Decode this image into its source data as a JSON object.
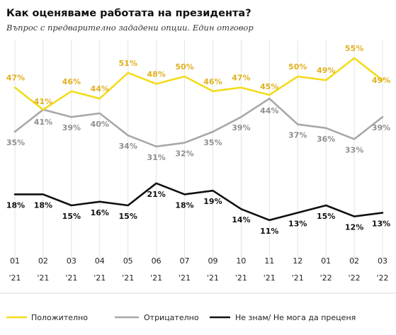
{
  "chart_data": {
    "type": "line",
    "title": "Как оценяваме работата на президента?",
    "subtitle": "Въпрос с предварително зададени опции. Един отговор",
    "xlabel": "",
    "ylabel": "",
    "ylim": [
      0,
      60
    ],
    "grid": true,
    "legend_position": "bottom",
    "x": [
      {
        "month": "01",
        "year": "'21"
      },
      {
        "month": "02",
        "year": "'21"
      },
      {
        "month": "03",
        "year": "'21"
      },
      {
        "month": "04",
        "year": "'21"
      },
      {
        "month": "05",
        "year": "'21"
      },
      {
        "month": "06",
        "year": "'21"
      },
      {
        "month": "07",
        "year": "'21"
      },
      {
        "month": "09",
        "year": "'21"
      },
      {
        "month": "10",
        "year": "'21"
      },
      {
        "month": "11",
        "year": "'21"
      },
      {
        "month": "12",
        "year": "'21"
      },
      {
        "month": "01",
        "year": "'22"
      },
      {
        "month": "02",
        "year": "'22"
      },
      {
        "month": "03",
        "year": "'22"
      }
    ],
    "series": [
      {
        "name": "Положително",
        "color": "#f2dc1b",
        "label_color": "#e0b020",
        "values": [
          47,
          41,
          46,
          44,
          51,
          48,
          50,
          46,
          47,
          45,
          50,
          49,
          55,
          49
        ],
        "labels": [
          "47%",
          "41%",
          "46%",
          "44%",
          "51%",
          "48%",
          "50%",
          "46%",
          "47%",
          "45%",
          "50%",
          "49%",
          "55%",
          "49%"
        ]
      },
      {
        "name": "Отрицателно",
        "color": "#a8a8a8",
        "label_color": "#8f8f8f",
        "values": [
          35,
          41,
          39,
          40,
          34,
          31,
          32,
          35,
          39,
          44,
          37,
          36,
          33,
          39
        ],
        "labels": [
          "35%",
          "41%",
          "39%",
          "40%",
          "34%",
          "31%",
          "32%",
          "35%",
          "39%",
          "44%",
          "37%",
          "36%",
          "33%",
          "39%"
        ]
      },
      {
        "name": "Не знам/ Не мога да преценя",
        "color": "#111111",
        "label_color": "#111111",
        "values": [
          18,
          18,
          15,
          16,
          15,
          21,
          18,
          19,
          14,
          11,
          13,
          15,
          12,
          13
        ],
        "labels": [
          "18%",
          "18%",
          "15%",
          "16%",
          "15%",
          "21%",
          "18%",
          "19%",
          "14%",
          "11%",
          "13%",
          "15%",
          "12%",
          "13%"
        ]
      }
    ]
  }
}
